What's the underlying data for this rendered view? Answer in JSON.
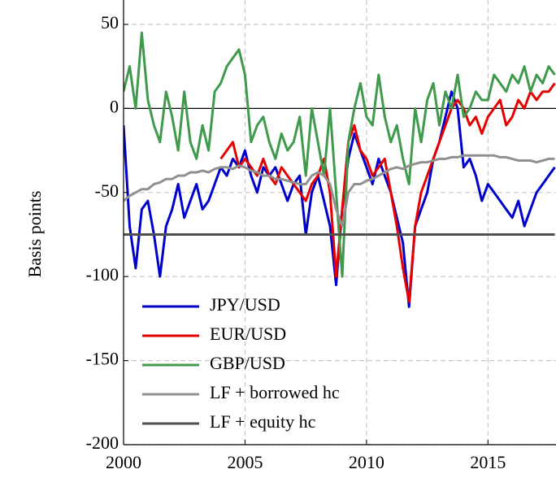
{
  "chart_data": {
    "type": "line",
    "ylabel": "Basis points",
    "xlim": [
      2000,
      2017.8
    ],
    "xticks": [
      2000,
      2005,
      2010,
      2015
    ],
    "ylim": [
      -200,
      64.5
    ],
    "yticks": [
      -200,
      -150,
      -100,
      -50,
      0,
      50
    ],
    "grid": true,
    "zero_line": true,
    "legend": "lower left",
    "x": [
      2000,
      2000.25,
      2000.5,
      2000.75,
      2001,
      2001.25,
      2001.5,
      2001.75,
      2002,
      2002.25,
      2002.5,
      2002.75,
      2003,
      2003.25,
      2003.5,
      2003.75,
      2004,
      2004.25,
      2004.5,
      2004.75,
      2005,
      2005.25,
      2005.5,
      2005.75,
      2006,
      2006.25,
      2006.5,
      2006.75,
      2007,
      2007.25,
      2007.5,
      2007.75,
      2008,
      2008.25,
      2008.5,
      2008.75,
      2009,
      2009.25,
      2009.5,
      2009.75,
      2010,
      2010.25,
      2010.5,
      2010.75,
      2011,
      2011.25,
      2011.5,
      2011.75,
      2012,
      2012.25,
      2012.5,
      2012.75,
      2013,
      2013.25,
      2013.5,
      2013.75,
      2014,
      2014.25,
      2014.5,
      2014.75,
      2015,
      2015.25,
      2015.5,
      2015.75,
      2016,
      2016.25,
      2016.5,
      2016.75,
      2017,
      2017.25,
      2017.5,
      2017.75
    ],
    "series": [
      {
        "name": "JPY/USD",
        "color": "#0000cc",
        "values": [
          -10,
          -70,
          -95,
          -60,
          -55,
          -75,
          -100,
          -70,
          -60,
          -45,
          -65,
          -55,
          -45,
          -60,
          -55,
          -45,
          -35,
          -40,
          -30,
          -35,
          -25,
          -40,
          -50,
          -35,
          -40,
          -35,
          -45,
          -55,
          -45,
          -40,
          -75,
          -50,
          -40,
          -55,
          -70,
          -105,
          -60,
          -30,
          -15,
          -25,
          -35,
          -45,
          -30,
          -40,
          -50,
          -65,
          -80,
          -118,
          -70,
          -60,
          -50,
          -30,
          -20,
          -5,
          10,
          0,
          -35,
          -30,
          -40,
          -55,
          -45,
          -50,
          -55,
          -60,
          -65,
          -55,
          -70,
          -60,
          -50,
          -45,
          -40,
          -35
        ]
      },
      {
        "name": "EUR/USD",
        "color": "#e60000",
        "values": [
          null,
          null,
          null,
          null,
          null,
          null,
          null,
          null,
          null,
          null,
          null,
          null,
          null,
          null,
          null,
          null,
          -30,
          -25,
          -20,
          -35,
          -30,
          -35,
          -40,
          -30,
          -40,
          -45,
          -35,
          -40,
          -45,
          -50,
          -55,
          -45,
          -40,
          -30,
          -50,
          -100,
          -60,
          -20,
          -10,
          -25,
          -30,
          -40,
          -35,
          -30,
          -50,
          -70,
          -95,
          -115,
          -70,
          -50,
          -40,
          -30,
          -20,
          -10,
          0,
          5,
          0,
          -10,
          -5,
          -15,
          -5,
          0,
          5,
          -10,
          -5,
          5,
          0,
          10,
          5,
          10,
          10,
          15
        ]
      },
      {
        "name": "GBP/USD",
        "color": "#3f9a4c",
        "values": [
          10,
          25,
          0,
          45,
          5,
          -10,
          -20,
          10,
          -5,
          -25,
          10,
          -20,
          -30,
          -10,
          -25,
          10,
          15,
          25,
          30,
          35,
          20,
          -20,
          -10,
          -5,
          -20,
          -30,
          -15,
          -25,
          -20,
          -5,
          -40,
          0,
          -20,
          -40,
          0,
          -50,
          -100,
          -20,
          0,
          15,
          -5,
          -10,
          20,
          -5,
          -20,
          -10,
          -30,
          -45,
          0,
          -20,
          5,
          15,
          -10,
          10,
          0,
          20,
          -5,
          0,
          10,
          5,
          5,
          20,
          15,
          10,
          20,
          15,
          25,
          10,
          20,
          15,
          25,
          20
        ]
      },
      {
        "name": "LF + borrowed hc",
        "color": "#909090",
        "values": [
          -55,
          -52,
          -50,
          -48,
          -48,
          -45,
          -44,
          -42,
          -42,
          -40,
          -40,
          -38,
          -38,
          -37,
          -38,
          -36,
          -35,
          -35,
          -36,
          -34,
          -35,
          -37,
          -38,
          -40,
          -40,
          -42,
          -42,
          -43,
          -44,
          -45,
          -45,
          -40,
          -38,
          -40,
          -45,
          -60,
          -70,
          -50,
          -45,
          -45,
          -43,
          -42,
          -40,
          -38,
          -36,
          -35,
          -36,
          -34,
          -33,
          -32,
          -32,
          -31,
          -30,
          -30,
          -29,
          -29,
          -28,
          -28,
          -28,
          -28,
          -28,
          -28,
          -29,
          -29,
          -30,
          -31,
          -31,
          -31,
          -32,
          -31,
          -30,
          -30
        ]
      },
      {
        "name": "LF + equity hc",
        "color": "#505050",
        "values": [
          -75,
          -75,
          -75,
          -75,
          -75,
          -75,
          -75,
          -75,
          -75,
          -75,
          -75,
          -75,
          -75,
          -75,
          -75,
          -75,
          -75,
          -75,
          -75,
          -75,
          -75,
          -75,
          -75,
          -75,
          -75,
          -75,
          -75,
          -75,
          -75,
          -75,
          -75,
          -75,
          -75,
          -75,
          -75,
          -75,
          -75,
          -75,
          -75,
          -75,
          -75,
          -75,
          -75,
          -75,
          -75,
          -75,
          -75,
          -75,
          -75,
          -75,
          -75,
          -75,
          -75,
          -75,
          -75,
          -75,
          -75,
          -75,
          -75,
          -75,
          -75,
          -75,
          -75,
          -75,
          -75,
          -75,
          -75,
          -75,
          -75,
          -75,
          -75,
          -75
        ]
      }
    ]
  }
}
